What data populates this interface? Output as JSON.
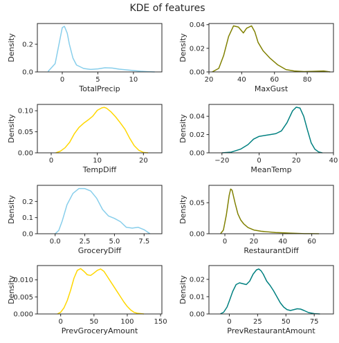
{
  "chart_data": {
    "title": "KDE of features",
    "type": "line",
    "ylabel": "Density",
    "grid": false,
    "panels": [
      {
        "xlabel": "TotalPrecip",
        "color": "#87CEEB",
        "xlim": [
          -3.5,
          14
        ],
        "ylim": [
          0,
          0.35
        ],
        "xticks": [
          0,
          5,
          10
        ],
        "xtick_labels": [
          "0",
          "5",
          "10"
        ],
        "yticks": [
          0,
          0.2
        ],
        "ytick_labels": [
          "0.0",
          "0.2"
        ],
        "x": [
          -2,
          -1,
          -0.5,
          0,
          0.3,
          0.7,
          1,
          1.5,
          2,
          3,
          4,
          5,
          6,
          7,
          8,
          9,
          10,
          11,
          12,
          13
        ],
        "y": [
          0.003,
          0.06,
          0.19,
          0.32,
          0.33,
          0.28,
          0.2,
          0.1,
          0.05,
          0.025,
          0.018,
          0.022,
          0.03,
          0.028,
          0.02,
          0.015,
          0.01,
          0.005,
          0.002,
          0.0
        ]
      },
      {
        "xlabel": "MaxGust",
        "color": "#808000",
        "xlim": [
          20,
          96
        ],
        "ylim": [
          0,
          0.041
        ],
        "xticks": [
          20,
          40,
          60,
          80
        ],
        "xtick_labels": [
          "20",
          "40",
          "60",
          "80"
        ],
        "yticks": [
          0,
          0.02,
          0.04
        ],
        "ytick_labels": [
          "0.00",
          "0.02",
          "0.04"
        ],
        "x": [
          22,
          26,
          29,
          32,
          35,
          38,
          41,
          43,
          46,
          48,
          50,
          53,
          57,
          62,
          67,
          72,
          78,
          84,
          90,
          94
        ],
        "y": [
          0.0,
          0.003,
          0.014,
          0.03,
          0.039,
          0.038,
          0.033,
          0.037,
          0.039,
          0.034,
          0.025,
          0.018,
          0.012,
          0.006,
          0.002,
          0.0008,
          0.0003,
          0.0005,
          0.0008,
          0.0
        ]
      },
      {
        "xlabel": "TempDiff",
        "color": "#FFD700",
        "xlim": [
          -3,
          24
        ],
        "ylim": [
          0,
          0.115
        ],
        "xticks": [
          0,
          10,
          20
        ],
        "xtick_labels": [
          "0",
          "10",
          "20"
        ],
        "yticks": [
          0,
          0.05,
          0.1
        ],
        "ytick_labels": [
          "0.00",
          "0.05",
          "0.10"
        ],
        "x": [
          1,
          2,
          3,
          4,
          5,
          6,
          7,
          8,
          9,
          10,
          11,
          11.5,
          12,
          13,
          14,
          15,
          16,
          17,
          18,
          19,
          20,
          21
        ],
        "y": [
          0.0,
          0.004,
          0.012,
          0.025,
          0.045,
          0.06,
          0.07,
          0.078,
          0.087,
          0.101,
          0.107,
          0.108,
          0.106,
          0.097,
          0.085,
          0.071,
          0.056,
          0.035,
          0.017,
          0.006,
          0.001,
          0.0
        ]
      },
      {
        "xlabel": "MeanTemp",
        "color": "#008080",
        "xlim": [
          -27,
          40
        ],
        "ylim": [
          0,
          0.053
        ],
        "xticks": [
          -20,
          0,
          20,
          40
        ],
        "xtick_labels": [
          "−20",
          "0",
          "20",
          "40"
        ],
        "yticks": [
          0,
          0.02,
          0.04
        ],
        "ytick_labels": [
          "0.00",
          "0.02",
          "0.04"
        ],
        "x": [
          -20,
          -15,
          -10,
          -6,
          -3,
          0,
          3,
          6,
          9,
          12,
          15,
          18,
          20,
          22,
          24,
          26,
          28,
          30,
          32,
          34
        ],
        "y": [
          0.0,
          0.0008,
          0.004,
          0.009,
          0.015,
          0.018,
          0.019,
          0.02,
          0.021,
          0.024,
          0.033,
          0.046,
          0.05,
          0.049,
          0.04,
          0.025,
          0.011,
          0.004,
          0.001,
          0.0
        ]
      },
      {
        "xlabel": "GroceryDiff",
        "color": "#87CEEB",
        "xlim": [
          -1.5,
          9
        ],
        "ylim": [
          0,
          0.3
        ],
        "xticks": [
          0,
          2.5,
          5,
          7.5
        ],
        "xtick_labels": [
          "0.0",
          "2.5",
          "5.0",
          "7.5"
        ],
        "yticks": [
          0,
          0.1,
          0.2
        ],
        "ytick_labels": [
          "0.0",
          "0.1",
          "0.2"
        ],
        "x": [
          0,
          0.3,
          0.6,
          1,
          1.5,
          2,
          2.5,
          3,
          3.5,
          4,
          4.5,
          5,
          5.5,
          6,
          6.5,
          7,
          7.5,
          8
        ],
        "y": [
          0.0,
          0.02,
          0.08,
          0.18,
          0.25,
          0.28,
          0.28,
          0.265,
          0.22,
          0.15,
          0.11,
          0.095,
          0.075,
          0.04,
          0.035,
          0.04,
          0.025,
          0.0
        ]
      },
      {
        "xlabel": "RestaurantDiff",
        "color": "#808000",
        "xlim": [
          -11,
          75
        ],
        "ylim": [
          0,
          0.078
        ],
        "xticks": [
          0,
          20,
          40,
          60
        ],
        "xtick_labels": [
          "0",
          "20",
          "40",
          "60"
        ],
        "yticks": [
          0,
          0.05
        ],
        "ytick_labels": [
          "0.00",
          "0.05"
        ],
        "x": [
          -3,
          -1,
          1,
          3,
          4,
          5,
          7,
          9,
          11,
          13,
          16,
          20,
          25,
          30,
          35,
          40,
          45,
          50,
          55,
          60,
          65
        ],
        "y": [
          0.0,
          0.006,
          0.03,
          0.062,
          0.072,
          0.07,
          0.05,
          0.032,
          0.022,
          0.016,
          0.01,
          0.006,
          0.004,
          0.003,
          0.002,
          0.0015,
          0.001,
          0.0005,
          0.0002,
          0.0001,
          0.0
        ]
      },
      {
        "xlabel": "PrevGroceryAmount",
        "color": "#FFD700",
        "xlim": [
          -35,
          152
        ],
        "ylim": [
          0,
          0.0142
        ],
        "xticks": [
          0,
          50,
          100,
          150
        ],
        "xtick_labels": [
          "0",
          "50",
          "100",
          "150"
        ],
        "yticks": [
          0,
          0.005,
          0.01
        ],
        "ytick_labels": [
          "0.000",
          "0.005",
          "0.010"
        ],
        "x": [
          -5,
          0,
          5,
          10,
          15,
          20,
          25,
          30,
          35,
          40,
          45,
          50,
          55,
          60,
          65,
          70,
          75,
          80,
          85,
          90,
          95,
          100,
          105,
          110,
          115,
          120,
          125
        ],
        "y": [
          0.0,
          0.0005,
          0.0018,
          0.004,
          0.007,
          0.0105,
          0.0128,
          0.0133,
          0.0125,
          0.0115,
          0.0113,
          0.012,
          0.0128,
          0.0132,
          0.0125,
          0.011,
          0.0095,
          0.008,
          0.0065,
          0.005,
          0.0035,
          0.0022,
          0.0012,
          0.0005,
          0.0002,
          0.0001,
          0.0
        ]
      },
      {
        "xlabel": "PrevRestaurantAmount",
        "color": "#008080",
        "xlim": [
          -18,
          92
        ],
        "ylim": [
          0,
          0.028
        ],
        "xticks": [
          0,
          25,
          50,
          75
        ],
        "xtick_labels": [
          "0",
          "25",
          "50",
          "75"
        ],
        "yticks": [
          0,
          0.01,
          0.02
        ],
        "ytick_labels": [
          "0.00",
          "0.01",
          "0.02"
        ],
        "x": [
          -8,
          -5,
          -2,
          0,
          3,
          6,
          9,
          12,
          15,
          18,
          21,
          24,
          26,
          28,
          30,
          33,
          36,
          39,
          42,
          45,
          48,
          51,
          54,
          57,
          60,
          63,
          66,
          70,
          75,
          80
        ],
        "y": [
          0.0,
          0.001,
          0.004,
          0.0075,
          0.013,
          0.017,
          0.018,
          0.0175,
          0.017,
          0.019,
          0.023,
          0.0255,
          0.026,
          0.025,
          0.023,
          0.019,
          0.0165,
          0.0135,
          0.01,
          0.0065,
          0.004,
          0.0025,
          0.002,
          0.0025,
          0.003,
          0.0028,
          0.002,
          0.0008,
          0.0002,
          0.0
        ]
      }
    ]
  }
}
